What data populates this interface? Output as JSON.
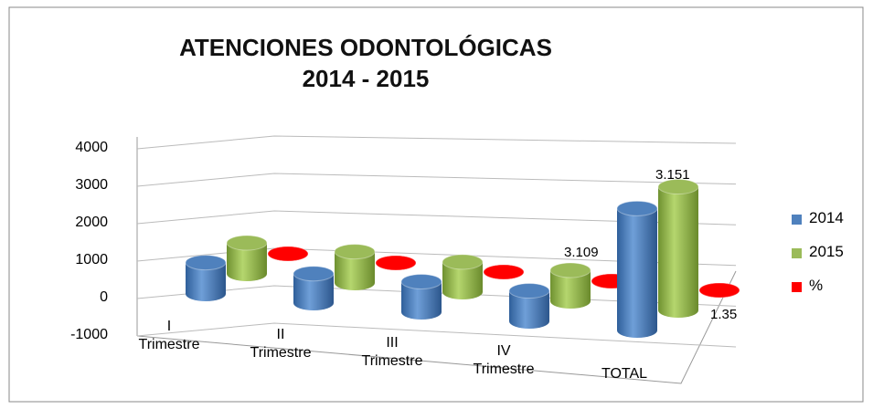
{
  "chart_data": {
    "type": "bar3d",
    "title": "ATENCIONES ODONTOLÓGICAS\n2014 - 2015",
    "categories": [
      "I\nTrimestre",
      "II\nTrimestre",
      "III\nTrimestre",
      "IV\nTrimestre",
      "TOTAL"
    ],
    "series": [
      {
        "name": "2014",
        "color": "#4f81bd",
        "values": [
          800,
          750,
          780,
          779,
          3109
        ],
        "value_labels": [
          null,
          null,
          null,
          null,
          "3.109"
        ]
      },
      {
        "name": "2015",
        "color": "#9bbb59",
        "values": [
          790,
          800,
          770,
          791,
          3151
        ],
        "value_labels": [
          null,
          null,
          null,
          null,
          "3.151"
        ]
      },
      {
        "name": "%",
        "color": "#ff0000",
        "values": [
          1,
          1,
          1,
          1,
          1.35
        ],
        "value_labels": [
          null,
          null,
          null,
          null,
          "1.35"
        ]
      }
    ],
    "ylim": [
      -1000,
      4000
    ],
    "yticks": [
      -1000,
      0,
      1000,
      2000,
      3000,
      4000
    ],
    "grid": true,
    "legend": "right"
  }
}
